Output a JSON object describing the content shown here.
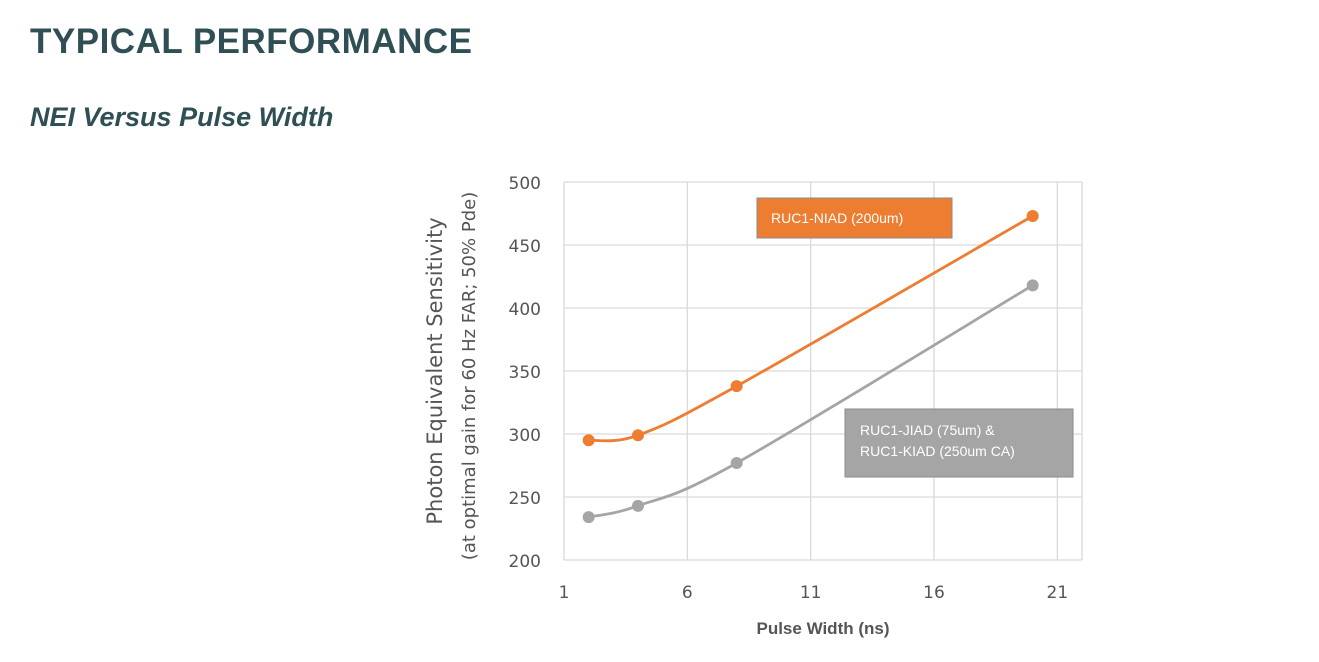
{
  "page": {
    "heading": "TYPICAL PERFORMANCE",
    "subheading": "NEI Versus Pulse Width"
  },
  "chart_data": {
    "type": "line",
    "title": "",
    "xlabel": "Pulse Width (ns)",
    "ylabel": "Photon  Equivalent Sensitivity",
    "ylabel_sub": "(at optimal gain for 60 Hz FAR; 50% Pde)",
    "xlim": [
      1,
      22
    ],
    "ylim": [
      200,
      500
    ],
    "xticks": [
      1,
      6,
      11,
      16,
      21
    ],
    "yticks": [
      200,
      250,
      300,
      350,
      400,
      450,
      500
    ],
    "grid": true,
    "series": [
      {
        "name": "RUC1-NIAD (200um)",
        "label_lines": [
          "RUC1-NIAD (200um)"
        ],
        "color": "#ed7d31",
        "x": [
          2,
          4,
          8,
          20
        ],
        "y": [
          295,
          299,
          338,
          473
        ]
      },
      {
        "name": "RUC1-JIAD (75um) & RUC1-KIAD (250um CA)",
        "label_lines": [
          "RUC1-JIAD  (75um)   &",
          "RUC1-KIAD  (250um CA)"
        ],
        "color": "#a5a5a5",
        "x": [
          2,
          4,
          8,
          20
        ],
        "y": [
          234,
          243,
          277,
          418
        ]
      }
    ]
  }
}
